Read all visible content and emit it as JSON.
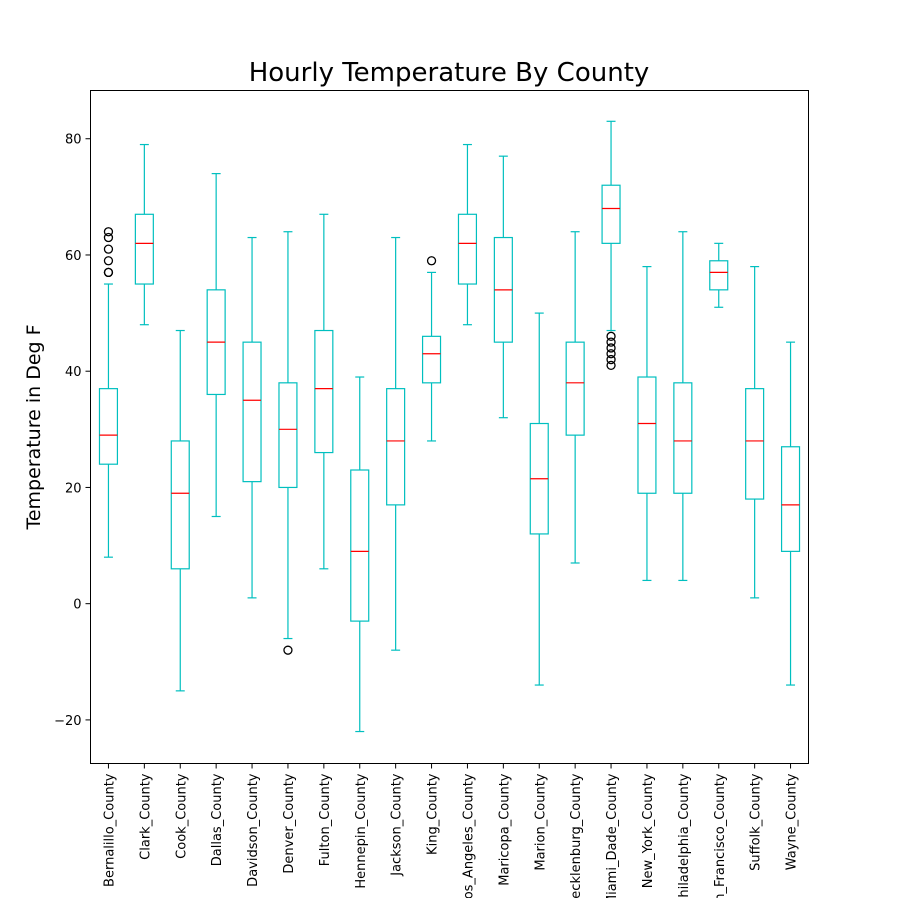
{
  "chart_data": {
    "type": "box",
    "title": "Hourly Temperature By County",
    "xlabel": "",
    "ylabel": "Temperature in Deg F",
    "ylim": [
      -27.5,
      88.3
    ],
    "yticks": [
      -20,
      0,
      20,
      40,
      60,
      80
    ],
    "grid": false,
    "colors": {
      "box": "#00bfbf",
      "median": "#ff0000",
      "outlier": "#000000"
    },
    "categories": [
      "Bernalillo_County",
      "Clark_County",
      "Cook_County",
      "Dallas_County",
      "Davidson_County",
      "Denver_County",
      "Fulton_County",
      "Hennepin_County",
      "Jackson_County",
      "King_County",
      "Los_Angeles_County",
      "Maricopa_County",
      "Marion_County",
      "Mecklenburg_County",
      "Miami_Dade_County",
      "New_York_County",
      "Philadelphia_County",
      "San_Francisco_County",
      "Suffolk_County",
      "Wayne_County"
    ],
    "boxes": [
      {
        "whislo": 8,
        "q1": 24,
        "med": 29,
        "q3": 37,
        "whishi": 55,
        "fliers": [
          57,
          57,
          59,
          61,
          63,
          64
        ]
      },
      {
        "whislo": 48,
        "q1": 55,
        "med": 62,
        "q3": 67,
        "whishi": 79,
        "fliers": []
      },
      {
        "whislo": -15,
        "q1": 6,
        "med": 19,
        "q3": 28,
        "whishi": 47,
        "fliers": []
      },
      {
        "whislo": 15,
        "q1": 36,
        "med": 45,
        "q3": 54,
        "whishi": 74,
        "fliers": []
      },
      {
        "whislo": 1,
        "q1": 21,
        "med": 35,
        "q3": 45,
        "whishi": 63,
        "fliers": []
      },
      {
        "whislo": -6,
        "q1": 20,
        "med": 30,
        "q3": 38,
        "whishi": 64,
        "fliers": [
          -8
        ]
      },
      {
        "whislo": 6,
        "q1": 26,
        "med": 37,
        "q3": 47,
        "whishi": 67,
        "fliers": []
      },
      {
        "whislo": -22,
        "q1": -3,
        "med": 9,
        "q3": 23,
        "whishi": 39,
        "fliers": []
      },
      {
        "whislo": -8,
        "q1": 17,
        "med": 28,
        "q3": 37,
        "whishi": 63,
        "fliers": []
      },
      {
        "whislo": 28,
        "q1": 38,
        "med": 43,
        "q3": 46,
        "whishi": 57,
        "fliers": [
          59
        ]
      },
      {
        "whislo": 48,
        "q1": 55,
        "med": 62,
        "q3": 67,
        "whishi": 79,
        "fliers": []
      },
      {
        "whislo": 32,
        "q1": 45,
        "med": 54,
        "q3": 63,
        "whishi": 77,
        "fliers": []
      },
      {
        "whislo": -14,
        "q1": 12,
        "med": 21.5,
        "q3": 31,
        "whishi": 50,
        "fliers": []
      },
      {
        "whislo": 7,
        "q1": 29,
        "med": 38,
        "q3": 45,
        "whishi": 64,
        "fliers": []
      },
      {
        "whislo": 47,
        "q1": 62,
        "med": 68,
        "q3": 72,
        "whishi": 83,
        "fliers": [
          41,
          42,
          43,
          44,
          45,
          46
        ]
      },
      {
        "whislo": 4,
        "q1": 19,
        "med": 31,
        "q3": 39,
        "whishi": 58,
        "fliers": []
      },
      {
        "whislo": 4,
        "q1": 19,
        "med": 28,
        "q3": 38,
        "whishi": 64,
        "fliers": []
      },
      {
        "whislo": 51,
        "q1": 54,
        "med": 57,
        "q3": 59,
        "whishi": 62,
        "fliers": []
      },
      {
        "whislo": 1,
        "q1": 18,
        "med": 28,
        "q3": 37,
        "whishi": 58,
        "fliers": []
      },
      {
        "whislo": -14,
        "q1": 9,
        "med": 17,
        "q3": 27,
        "whishi": 45,
        "fliers": []
      }
    ]
  }
}
